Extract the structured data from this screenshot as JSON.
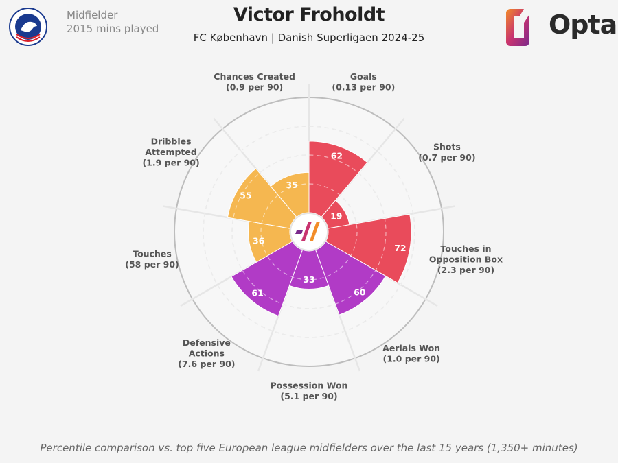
{
  "header": {
    "title": "Victor Froholdt",
    "subtitle": "FC København | Danish Superligaen 2024-25",
    "position": "Midfielder",
    "minutes": "2015 mins played"
  },
  "club_logo": {
    "text": "F.C. KØBENHAVN",
    "colors": {
      "primary": "#1a3a8f",
      "accent": "#d9202a"
    }
  },
  "brand": {
    "name": "Opta",
    "colors": {
      "orange": "#f28c28",
      "pink": "#c8336f",
      "purple": "#7a2a8c"
    }
  },
  "footer": "Percentile comparison vs. top five European league midfielders over the last 15 years (1,350+ minutes)",
  "colors": {
    "attacking": "#e94b5b",
    "possession": "#f5b750",
    "defending": "#b13bc6",
    "ring": "#cfcfcf",
    "background": "#f4f4f4"
  },
  "chart_data": {
    "type": "polar_bar",
    "scale_max": 100,
    "metrics": [
      {
        "label_lines": [
          "Goals",
          "(0.13 per 90)"
        ],
        "value": 62,
        "group": "attacking"
      },
      {
        "label_lines": [
          "Shots",
          "(0.7 per 90)"
        ],
        "value": 19,
        "group": "attacking"
      },
      {
        "label_lines": [
          "Touches in",
          "Opposition Box",
          "(2.3 per 90)"
        ],
        "value": 72,
        "group": "attacking"
      },
      {
        "label_lines": [
          "Aerials Won",
          "(1.0 per 90)"
        ],
        "value": 60,
        "group": "defending"
      },
      {
        "label_lines": [
          "Possession Won",
          "(5.1 per 90)"
        ],
        "value": 33,
        "group": "defending"
      },
      {
        "label_lines": [
          "Defensive",
          "Actions",
          "(7.6 per 90)"
        ],
        "value": 61,
        "group": "defending"
      },
      {
        "label_lines": [
          "Touches",
          "(58 per 90)"
        ],
        "value": 36,
        "group": "possession"
      },
      {
        "label_lines": [
          "Dribbles",
          "Attempted",
          "(1.9 per 90)"
        ],
        "value": 55,
        "group": "possession"
      },
      {
        "label_lines": [
          "Chances Created",
          "(0.9 per 90)"
        ],
        "value": 35,
        "group": "possession"
      }
    ]
  }
}
